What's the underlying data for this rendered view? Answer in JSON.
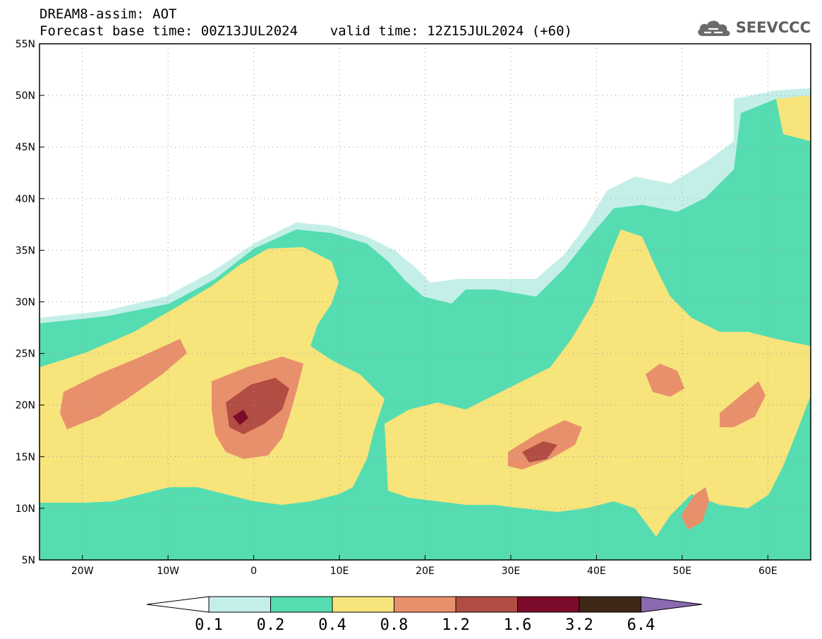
{
  "header": {
    "line1": "DREAM8-assim: AOT",
    "line2": "Forecast base time: 00Z13JUL2024    valid time: 12Z15JUL2024 (+60)"
  },
  "logo": {
    "text": "SEEVCCC",
    "icon": "cloud-icon"
  },
  "map": {
    "lon_labels": [
      "20W",
      "10W",
      "0",
      "10E",
      "20E",
      "30E",
      "40E",
      "50E",
      "60E"
    ],
    "lat_labels": [
      "55N",
      "50N",
      "45N",
      "40N",
      "35N",
      "30N",
      "25N",
      "20N",
      "15N",
      "10N",
      "5N"
    ],
    "lon_range": [
      -25,
      65
    ],
    "lat_range": [
      5,
      55
    ],
    "lon_ticks": [
      -20,
      -10,
      0,
      10,
      20,
      30,
      40,
      50,
      60
    ],
    "lat_ticks": [
      55,
      50,
      45,
      40,
      35,
      30,
      25,
      20,
      15,
      10,
      5
    ],
    "gridlines": "dotted"
  },
  "colorbar": {
    "labels": [
      "0.1",
      "0.2",
      "0.4",
      "0.8",
      "1.2",
      "1.6",
      "3.2",
      "6.4"
    ],
    "colors": [
      "#ffffff",
      "#c4efe8",
      "#55ddb1",
      "#f7e47b",
      "#e8906b",
      "#b14d43",
      "#7d0b2b",
      "#3f2718",
      "#8a6ab0"
    ]
  }
}
